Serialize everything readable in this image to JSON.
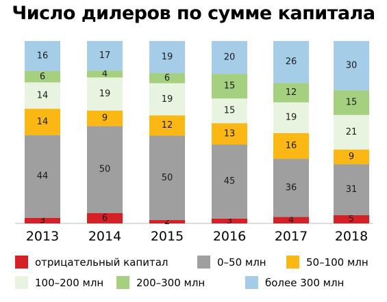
{
  "title": "Число дилеров по сумме капитала",
  "chart_data": {
    "type": "bar",
    "stacked": true,
    "title": "Число дилеров по сумме капитала",
    "categories": [
      "2013",
      "2014",
      "2015",
      "2016",
      "2017",
      "2018"
    ],
    "series": [
      {
        "name": "отрицательный капитал",
        "color": "#d42027",
        "values": [
          3,
          6,
          2,
          3,
          4,
          5
        ]
      },
      {
        "name": "0–50 млн",
        "color": "#9f9f9f",
        "values": [
          44,
          50,
          50,
          45,
          36,
          31
        ]
      },
      {
        "name": "50–100 млн",
        "color": "#fbb814",
        "values": [
          14,
          9,
          12,
          13,
          16,
          9
        ]
      },
      {
        "name": "100–200 млн",
        "color": "#e8f4df",
        "values": [
          14,
          19,
          19,
          15,
          19,
          21
        ]
      },
      {
        "name": "200–300 млн",
        "color": "#a5d07f",
        "values": [
          6,
          4,
          6,
          15,
          12,
          15
        ]
      },
      {
        "name": "более 300 млн",
        "color": "#a6cde8",
        "values": [
          16,
          17,
          19,
          20,
          26,
          30
        ]
      }
    ],
    "legend_position": "bottom",
    "grid": false
  }
}
